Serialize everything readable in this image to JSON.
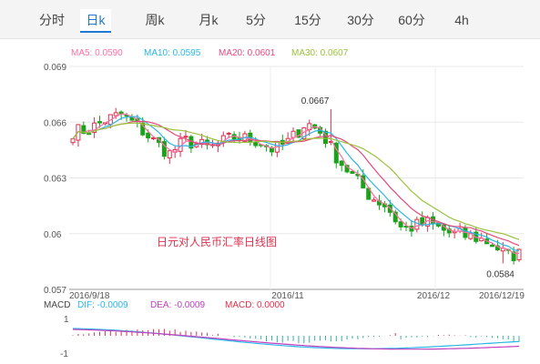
{
  "tabs": [
    {
      "label": "分时",
      "active": false
    },
    {
      "label": "日k",
      "active": true
    },
    {
      "label": "周k",
      "active": false
    },
    {
      "label": "月k",
      "active": false
    },
    {
      "label": "5分",
      "active": false
    },
    {
      "label": "15分",
      "active": false
    },
    {
      "label": "30分",
      "active": false
    },
    {
      "label": "60分",
      "active": false
    },
    {
      "label": "4h",
      "active": false
    }
  ],
  "legend": [
    {
      "text": "MA5: 0.0590",
      "color": "#ff6fa5"
    },
    {
      "text": "MA10: 0.0595",
      "color": "#29b6e6"
    },
    {
      "text": "MA20: 0.0601",
      "color": "#e6487a"
    },
    {
      "text": "MA30: 0.0607",
      "color": "#9ac23a"
    }
  ],
  "macd_legend": [
    {
      "text": "MACD",
      "color": "#444444"
    },
    {
      "text": "DIF: -0.0009",
      "color": "#29b6e6"
    },
    {
      "text": "DEA: -0.0009",
      "color": "#c040c0"
    },
    {
      "text": "MACD: 0.0000",
      "color": "#e0304e"
    }
  ],
  "chart_data": {
    "type": "candlestick",
    "title": "日元对人民币汇率日线图",
    "y_ticks": [
      "0.069",
      "0.066",
      "0.063",
      "0.06",
      "0.057"
    ],
    "ylim": [
      0.057,
      0.069
    ],
    "x_ticks": [
      "2016/9/18",
      "2016/11",
      "2016/12",
      "2016/12/19"
    ],
    "annotations": {
      "high": "0.0667",
      "low": "0.0584"
    },
    "macd_y_ticks": [
      "1",
      "-1"
    ],
    "colors": {
      "up": "#e0304e",
      "down": "#1aa31a"
    }
  }
}
